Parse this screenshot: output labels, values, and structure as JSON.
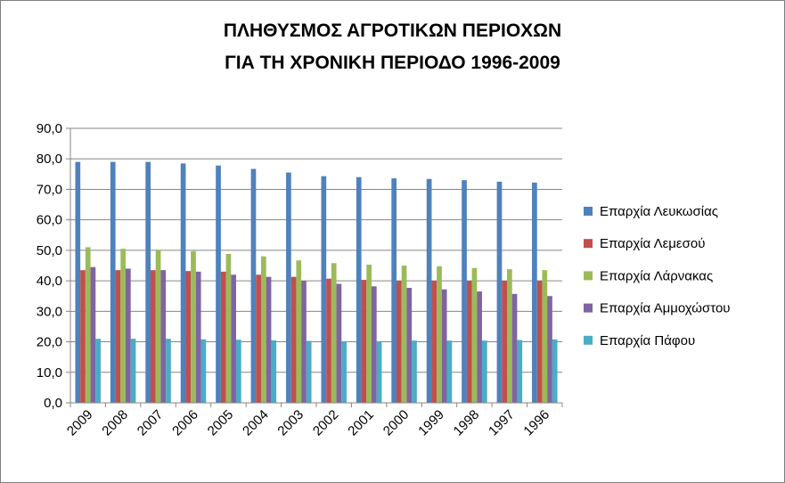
{
  "chart_data": {
    "type": "bar",
    "title_lines": [
      "ΠΛΗΘΥΣΜΟΣ ΑΓΡΟΤΙΚΩΝ ΠΕΡΙΟΧΩΝ",
      "ΓΙΑ ΤΗ ΧΡΟΝΙΚΗ ΠΕΡΙΟΔΟ 1996-2009"
    ],
    "categories": [
      "2009",
      "2008",
      "2007",
      "2006",
      "2005",
      "2004",
      "2003",
      "2002",
      "2001",
      "2000",
      "1999",
      "1998",
      "1997",
      "1996"
    ],
    "ylim": [
      0,
      90
    ],
    "yticks": [
      "0,0",
      "10,0",
      "20,0",
      "30,0",
      "40,0",
      "50,0",
      "60,0",
      "70,0",
      "80,0",
      "90,0"
    ],
    "grid": true,
    "legend_position": "right",
    "series": [
      {
        "name": "Επαρχία Λευκωσίας",
        "color": "#4f81bd",
        "values": [
          79.0,
          79.0,
          79.0,
          78.5,
          77.8,
          76.7,
          75.5,
          74.3,
          74.0,
          73.6,
          73.4,
          73.0,
          72.5,
          72.2
        ]
      },
      {
        "name": "Επαρχία Λεμεσού",
        "color": "#c0504d",
        "values": [
          43.5,
          43.5,
          43.5,
          43.2,
          43.0,
          42.0,
          41.3,
          40.7,
          40.3,
          40.0,
          40.0,
          40.0,
          40.0,
          40.0
        ]
      },
      {
        "name": "Επαρχία Λάρνακας",
        "color": "#9bbb59",
        "values": [
          51.0,
          50.5,
          50.2,
          49.7,
          48.8,
          48.0,
          46.7,
          45.8,
          45.3,
          45.0,
          44.8,
          44.2,
          43.8,
          43.5
        ]
      },
      {
        "name": "Επαρχία Αμμοχώστου",
        "color": "#8064a2",
        "values": [
          44.5,
          44.0,
          43.5,
          43.0,
          42.0,
          41.3,
          40.0,
          39.0,
          38.2,
          37.7,
          37.2,
          36.5,
          35.7,
          35.0
        ]
      },
      {
        "name": "Επαρχία Πάφου",
        "color": "#4bacc6",
        "values": [
          21.0,
          21.0,
          21.0,
          20.8,
          20.7,
          20.5,
          20.3,
          20.2,
          20.2,
          20.4,
          20.4,
          20.4,
          20.6,
          20.8
        ]
      }
    ]
  }
}
